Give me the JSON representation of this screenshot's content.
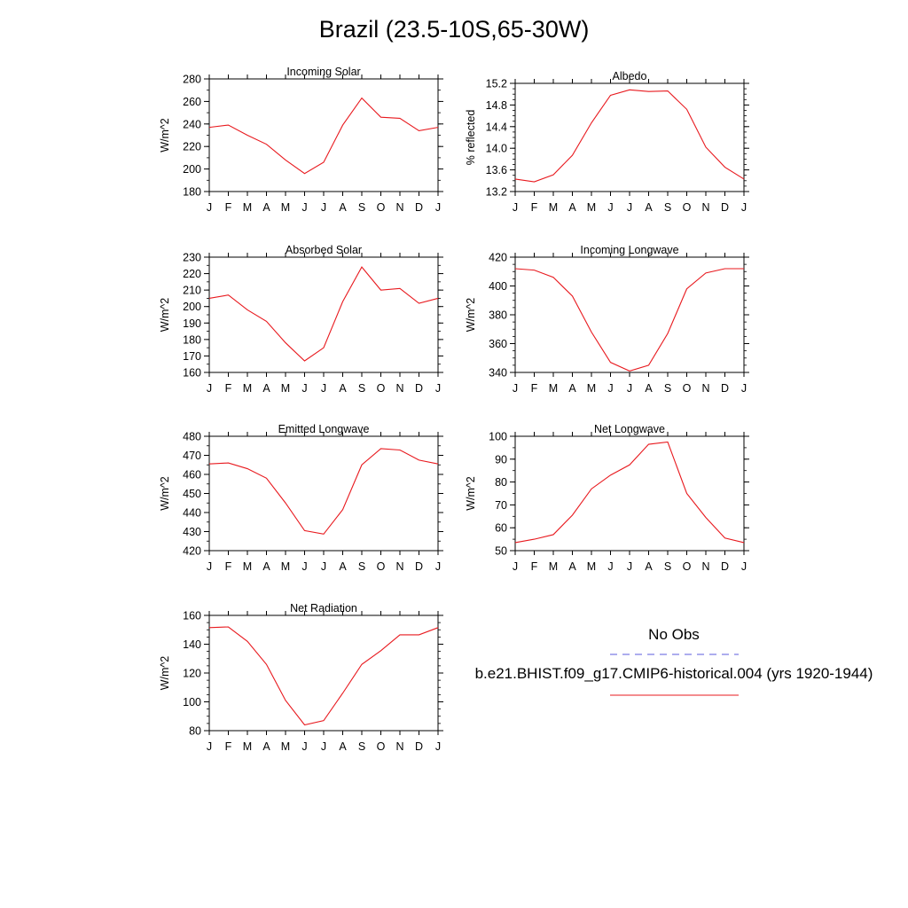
{
  "title": "Brazil (23.5-10S,65-30W)",
  "months": [
    "J",
    "F",
    "M",
    "A",
    "M",
    "J",
    "J",
    "A",
    "S",
    "O",
    "N",
    "D",
    "J"
  ],
  "line_color": "#e8191e",
  "obs_color": "#5b5bdc",
  "legend": {
    "obs_label": "No Obs",
    "model_label": "b.e21.BHIST.f09_g17.CMIP6-historical.004 (yrs 1920-1944)"
  },
  "chart_data": [
    {
      "type": "line",
      "title": "Incoming Solar",
      "ylabel": "W/m^2",
      "ylim": [
        180,
        280
      ],
      "yticks": [
        180,
        200,
        220,
        240,
        260,
        280
      ],
      "ytick_labels": [
        "180",
        "200",
        "220",
        "240",
        "260",
        "280"
      ],
      "y_minor": 10,
      "series": [
        {
          "values": [
            237,
            239,
            230,
            222,
            208,
            196,
            206,
            239,
            263,
            246,
            245,
            234,
            237
          ]
        }
      ]
    },
    {
      "type": "line",
      "title": "Albedo",
      "ylabel": "% reflected",
      "ylim": [
        13.2,
        15.2
      ],
      "yticks": [
        13.2,
        13.6,
        14.0,
        14.4,
        14.8,
        15.2
      ],
      "ytick_labels": [
        "13.2",
        "13.6",
        "14.0",
        "14.4",
        "14.8",
        "15.2"
      ],
      "y_minor": 0.1,
      "series": [
        {
          "values": [
            13.43,
            13.38,
            13.51,
            13.87,
            14.47,
            14.98,
            15.08,
            15.05,
            15.06,
            14.72,
            14.02,
            13.65,
            13.43
          ]
        }
      ]
    },
    {
      "type": "line",
      "title": "Absorbed Solar",
      "ylabel": "W/m^2",
      "ylim": [
        160,
        230
      ],
      "yticks": [
        160,
        170,
        180,
        190,
        200,
        210,
        220,
        230
      ],
      "ytick_labels": [
        "160",
        "170",
        "180",
        "190",
        "200",
        "210",
        "220",
        "230"
      ],
      "y_minor": 5,
      "series": [
        {
          "values": [
            205,
            207,
            198,
            191,
            178,
            167,
            175,
            203,
            224,
            210,
            211,
            202,
            205
          ]
        }
      ]
    },
    {
      "type": "line",
      "title": "Incoming Longwave",
      "ylabel": "W/m^2",
      "ylim": [
        340,
        420
      ],
      "yticks": [
        340,
        360,
        380,
        400,
        420
      ],
      "ytick_labels": [
        "340",
        "360",
        "380",
        "400",
        "420"
      ],
      "y_minor": 5,
      "series": [
        {
          "values": [
            412,
            411,
            406,
            393,
            368,
            347,
            341,
            345,
            367,
            398,
            409,
            412,
            412
          ]
        }
      ]
    },
    {
      "type": "line",
      "title": "Emitted Longwave",
      "ylabel": "W/m^2",
      "ylim": [
        420,
        480
      ],
      "yticks": [
        420,
        430,
        440,
        450,
        460,
        470,
        480
      ],
      "ytick_labels": [
        "420",
        "430",
        "440",
        "450",
        "460",
        "470",
        "480"
      ],
      "y_minor": 5,
      "series": [
        {
          "values": [
            465.5,
            466,
            463,
            458,
            445,
            430.5,
            428.7,
            441.5,
            465,
            473.5,
            472.8,
            467.5,
            465.5
          ]
        }
      ]
    },
    {
      "type": "line",
      "title": "Net Longwave",
      "ylabel": "W/m^2",
      "ylim": [
        50,
        100
      ],
      "yticks": [
        50,
        60,
        70,
        80,
        90,
        100
      ],
      "ytick_labels": [
        "50",
        "60",
        "70",
        "80",
        "90",
        "100"
      ],
      "y_minor": 5,
      "series": [
        {
          "values": [
            53.5,
            55,
            57,
            65.5,
            77,
            83,
            87.5,
            96.5,
            97.5,
            75,
            64.5,
            55.5,
            53.5
          ]
        }
      ]
    },
    {
      "type": "line",
      "title": "Net Radiation",
      "ylabel": "W/m^2",
      "ylim": [
        80,
        160
      ],
      "yticks": [
        80,
        100,
        120,
        140,
        160
      ],
      "ytick_labels": [
        "80",
        "100",
        "120",
        "140",
        "160"
      ],
      "y_minor": 5,
      "series": [
        {
          "values": [
            151.5,
            152,
            142,
            126,
            101,
            84,
            87,
            106,
            126,
            135.5,
            146.5,
            146.5,
            151.5
          ]
        }
      ]
    }
  ]
}
